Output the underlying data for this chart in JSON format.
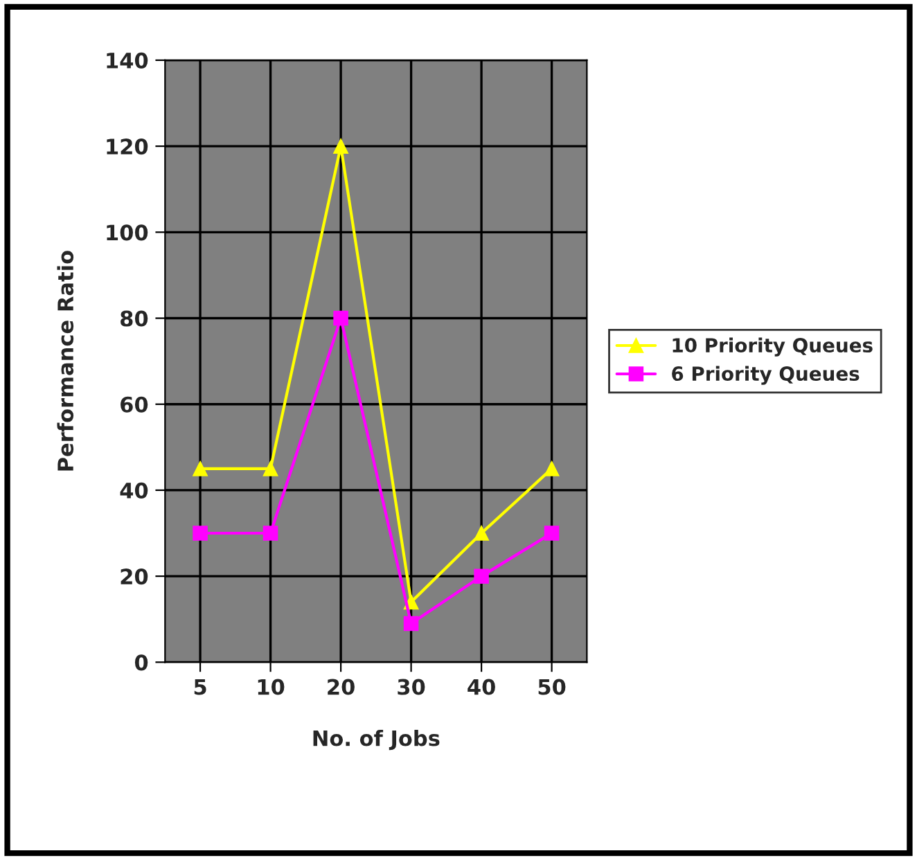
{
  "chart_data": {
    "type": "line",
    "xlabel": "No. of Jobs",
    "ylabel": "Performance Ratio",
    "categories": [
      "5",
      "10",
      "20",
      "30",
      "40",
      "50"
    ],
    "series": [
      {
        "name": "10 Priority Queues",
        "color": "#ffff00",
        "marker": "triangle",
        "values": [
          45,
          45,
          120,
          14,
          30,
          45
        ]
      },
      {
        "name": "6 Priority Queues",
        "color": "#ff00ff",
        "marker": "square",
        "values": [
          30,
          30,
          80,
          9,
          20,
          30
        ]
      }
    ],
    "ylim": [
      0,
      140
    ],
    "yticks": [
      0,
      20,
      40,
      60,
      80,
      100,
      120,
      140
    ],
    "grid": true,
    "legend": "right"
  }
}
